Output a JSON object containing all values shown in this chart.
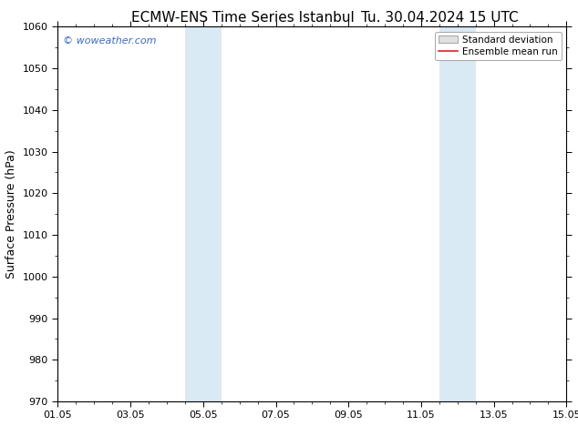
{
  "title_left": "ECMW-ENS Time Series Istanbul",
  "title_right": "Tu. 30.04.2024 15 UTC",
  "ylabel": "Surface Pressure (hPa)",
  "ylim": [
    970,
    1060
  ],
  "yticks": [
    970,
    980,
    990,
    1000,
    1010,
    1020,
    1030,
    1040,
    1050,
    1060
  ],
  "xlim_start": 0,
  "xlim_end": 14,
  "xtick_labels": [
    "01.05",
    "03.05",
    "05.05",
    "07.05",
    "09.05",
    "11.05",
    "13.05",
    "15.05"
  ],
  "xtick_positions": [
    0,
    2,
    4,
    6,
    8,
    10,
    12,
    14
  ],
  "shaded_bands": [
    {
      "x_start": 3.5,
      "x_end": 4.5
    },
    {
      "x_start": 10.5,
      "x_end": 11.5
    }
  ],
  "shade_color": "#daeaf5",
  "watermark_text": "© woweather.com",
  "watermark_color": "#3a6bbf",
  "legend_std_label": "Standard deviation",
  "legend_mean_label": "Ensemble mean run",
  "legend_std_facecolor": "#e0e0e0",
  "legend_std_edgecolor": "#aaaaaa",
  "legend_mean_color": "#dd2222",
  "bg_color": "#ffffff",
  "spine_color": "#000000",
  "title_fontsize": 11,
  "axis_label_fontsize": 9,
  "tick_fontsize": 8,
  "legend_fontsize": 7.5
}
